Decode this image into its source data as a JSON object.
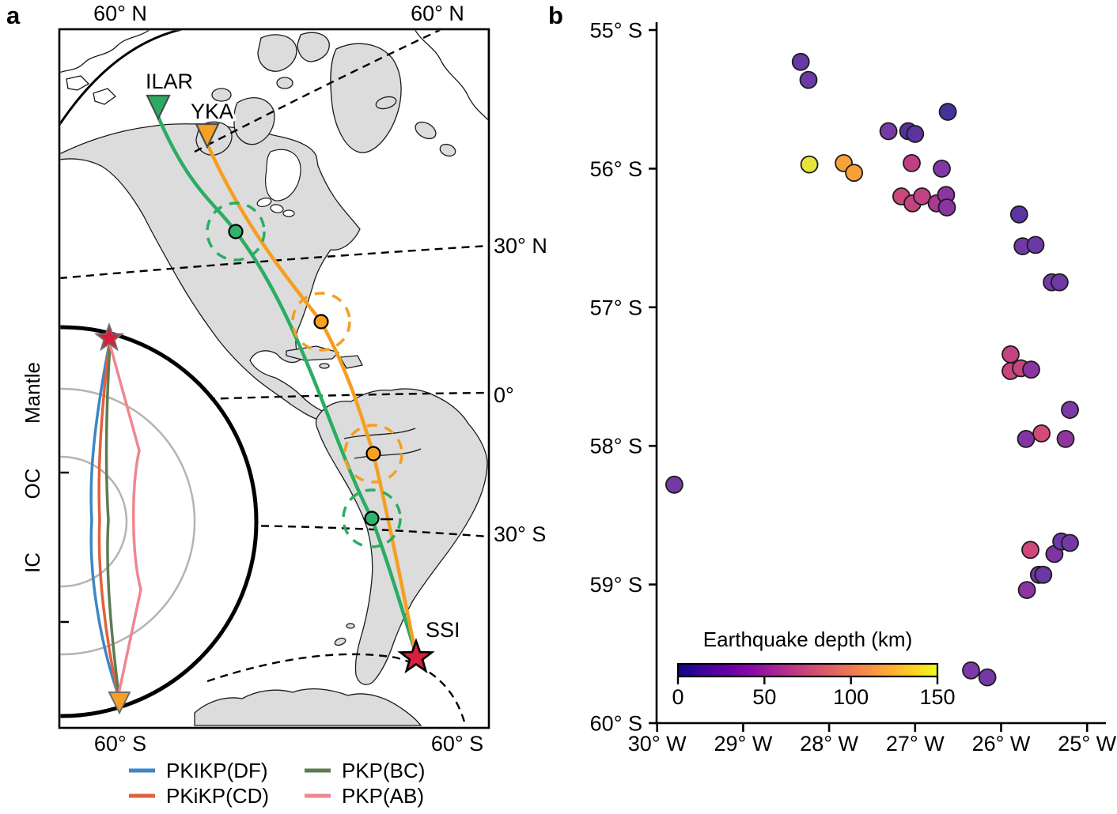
{
  "figure": {
    "panel_a_label": "a",
    "panel_b_label": "b"
  },
  "panel_a": {
    "stations": [
      {
        "code": "ILAR",
        "color": "#2aad63"
      },
      {
        "code": "YKA",
        "color": "#f6a124"
      }
    ],
    "source_station": {
      "code": "SSI",
      "color": "#d7213c"
    },
    "graticule_labels": {
      "top_left": "60° N",
      "top_right": "60° N",
      "right_30n": "30° N",
      "right_eq": "0°",
      "right_30s": "30° S",
      "bottom_left": "60° S",
      "bottom_right": "60° S"
    },
    "inset": {
      "mantle": "Mantle",
      "outer_core": "OC",
      "inner_core": "IC"
    },
    "legend": [
      {
        "label": "PKIKP(DF)",
        "color": "#3e86c3"
      },
      {
        "label": "PKiKP(CD)",
        "color": "#e2613b"
      },
      {
        "label": "PKP(BC)",
        "color": "#5d7b52"
      },
      {
        "label": "PKP(AB)",
        "color": "#f0868f"
      }
    ]
  },
  "chart_data": {
    "type": "scatter",
    "title": "",
    "xlim": [
      -30,
      -25
    ],
    "ylim": [
      -60,
      -55
    ],
    "x_ticks": [
      {
        "value": -30,
        "label": "30° W"
      },
      {
        "value": -29,
        "label": "29° W"
      },
      {
        "value": -28,
        "label": "28° W"
      },
      {
        "value": -27,
        "label": "27° W"
      },
      {
        "value": -26,
        "label": "26° W"
      },
      {
        "value": -25,
        "label": "25° W"
      }
    ],
    "y_ticks": [
      {
        "value": -55,
        "label": "55° S"
      },
      {
        "value": -56,
        "label": "56° S"
      },
      {
        "value": -57,
        "label": "57° S"
      },
      {
        "value": -58,
        "label": "58° S"
      },
      {
        "value": -59,
        "label": "59° S"
      },
      {
        "value": -60,
        "label": "60° S"
      }
    ],
    "colorbar": {
      "title": "Earthquake depth (km)",
      "range": [
        0,
        150
      ],
      "ticks": [
        0,
        50,
        100,
        150
      ],
      "colormap": "plasma",
      "gradient": [
        "#0d0887",
        "#41049d",
        "#6a00a8",
        "#8f0da4",
        "#b12a90",
        "#cc4778",
        "#e16462",
        "#f2844b",
        "#fca636",
        "#fcce25",
        "#f0f921"
      ]
    },
    "points": [
      {
        "lon": -28.33,
        "lat": -55.23,
        "depth": 30,
        "color": "#6639a5"
      },
      {
        "lon": -28.24,
        "lat": -55.36,
        "depth": 30,
        "color": "#6b3aa6"
      },
      {
        "lon": -26.62,
        "lat": -55.59,
        "depth": 13,
        "color": "#443499"
      },
      {
        "lon": -27.31,
        "lat": -55.73,
        "depth": 40,
        "color": "#7a3aa5"
      },
      {
        "lon": -27.08,
        "lat": -55.73,
        "depth": 24,
        "color": "#56309c"
      },
      {
        "lon": -27.0,
        "lat": -55.75,
        "depth": 27,
        "color": "#5d33a0"
      },
      {
        "lon": -28.23,
        "lat": -55.97,
        "depth": 140,
        "color": "#e8e33b"
      },
      {
        "lon": -27.83,
        "lat": -55.96,
        "depth": 116,
        "color": "#f8a23a"
      },
      {
        "lon": -27.71,
        "lat": -56.03,
        "depth": 115,
        "color": "#f8a038"
      },
      {
        "lon": -27.04,
        "lat": -55.96,
        "depth": 68,
        "color": "#c13e87"
      },
      {
        "lon": -26.69,
        "lat": -56.0,
        "depth": 42,
        "color": "#8138a6"
      },
      {
        "lon": -27.16,
        "lat": -56.2,
        "depth": 76,
        "color": "#cc4778"
      },
      {
        "lon": -27.03,
        "lat": -56.25,
        "depth": 72,
        "color": "#c64381"
      },
      {
        "lon": -26.92,
        "lat": -56.2,
        "depth": 70,
        "color": "#c34285"
      },
      {
        "lon": -26.75,
        "lat": -56.25,
        "depth": 60,
        "color": "#ab3a93"
      },
      {
        "lon": -26.64,
        "lat": -56.19,
        "depth": 48,
        "color": "#8e35a3"
      },
      {
        "lon": -26.63,
        "lat": -56.28,
        "depth": 46,
        "color": "#8a34a3"
      },
      {
        "lon": -25.79,
        "lat": -56.33,
        "depth": 28,
        "color": "#5c35a4"
      },
      {
        "lon": -25.75,
        "lat": -56.56,
        "depth": 36,
        "color": "#7139a8"
      },
      {
        "lon": -25.6,
        "lat": -56.55,
        "depth": 33,
        "color": "#6b38a6"
      },
      {
        "lon": -25.41,
        "lat": -56.82,
        "depth": 37,
        "color": "#7439a7"
      },
      {
        "lon": -25.32,
        "lat": -56.82,
        "depth": 34,
        "color": "#6e38a5"
      },
      {
        "lon": -25.89,
        "lat": -57.34,
        "depth": 72,
        "color": "#c64282"
      },
      {
        "lon": -25.89,
        "lat": -57.46,
        "depth": 74,
        "color": "#ca4580"
      },
      {
        "lon": -25.77,
        "lat": -57.44,
        "depth": 73,
        "color": "#c8447f"
      },
      {
        "lon": -25.65,
        "lat": -57.45,
        "depth": 47,
        "color": "#8b35a0"
      },
      {
        "lon": -25.2,
        "lat": -57.74,
        "depth": 41,
        "color": "#7c3aa6"
      },
      {
        "lon": -25.71,
        "lat": -57.95,
        "depth": 44,
        "color": "#8334a4"
      },
      {
        "lon": -25.53,
        "lat": -57.91,
        "depth": 80,
        "color": "#d14b77"
      },
      {
        "lon": -25.25,
        "lat": -57.95,
        "depth": 49,
        "color": "#9036a0"
      },
      {
        "lon": -29.8,
        "lat": -58.28,
        "depth": 38,
        "color": "#7439a6"
      },
      {
        "lon": -25.66,
        "lat": -58.75,
        "depth": 78,
        "color": "#cf4879"
      },
      {
        "lon": -25.38,
        "lat": -58.78,
        "depth": 43,
        "color": "#8034a4"
      },
      {
        "lon": -25.3,
        "lat": -58.69,
        "depth": 35,
        "color": "#6f38a6"
      },
      {
        "lon": -25.2,
        "lat": -58.7,
        "depth": 38,
        "color": "#7439a7"
      },
      {
        "lon": -25.56,
        "lat": -58.93,
        "depth": 36,
        "color": "#7338a5"
      },
      {
        "lon": -25.51,
        "lat": -58.93,
        "depth": 33,
        "color": "#6a37a4"
      },
      {
        "lon": -25.7,
        "lat": -59.04,
        "depth": 47,
        "color": "#8c35a2"
      },
      {
        "lon": -26.35,
        "lat": -59.62,
        "depth": 40,
        "color": "#7c3aa6"
      },
      {
        "lon": -26.16,
        "lat": -59.67,
        "depth": 37,
        "color": "#7439a6"
      }
    ]
  }
}
